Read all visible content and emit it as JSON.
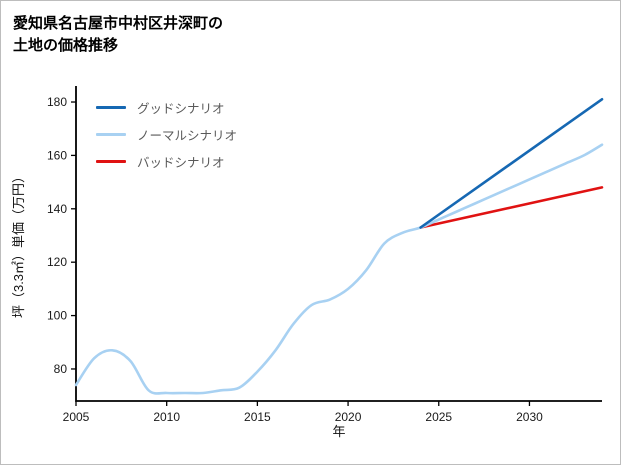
{
  "page": {
    "title_line1": "愛知県名古屋市中村区井深町の",
    "title_line2": "土地の価格推移"
  },
  "chart_data": {
    "type": "line",
    "title": "愛知県名古屋市中村区井深町の土地の価格推移",
    "xlabel": "年",
    "ylabel": "坪（3.3㎡）単価（万円）",
    "xlim": [
      2005,
      2034
    ],
    "ylim": [
      68,
      186
    ],
    "xticks": [
      2005,
      2010,
      2015,
      2020,
      2025,
      2030
    ],
    "yticks": [
      80,
      100,
      120,
      140,
      160,
      180
    ],
    "grid": false,
    "legend_position": "upper-left-inside",
    "axis_color": "#000000",
    "series": [
      {
        "name": "グッドシナリオ",
        "color": "#1668b3",
        "x": [
          2024,
          2034
        ],
        "y": [
          133,
          181
        ]
      },
      {
        "name": "ノーマルシナリオ",
        "color": "#a8d1f2",
        "x": [
          2005,
          2006,
          2007,
          2008,
          2009,
          2010,
          2011,
          2012,
          2013,
          2014,
          2015,
          2016,
          2017,
          2018,
          2019,
          2020,
          2021,
          2022,
          2023,
          2024,
          2025,
          2026,
          2027,
          2028,
          2029,
          2030,
          2031,
          2032,
          2033,
          2034
        ],
        "y": [
          74,
          84,
          87,
          83,
          72,
          71,
          71,
          71,
          72,
          73,
          79,
          87,
          97,
          104,
          106,
          110,
          117,
          127,
          131,
          133,
          136,
          139,
          142,
          145,
          148,
          151,
          154,
          157,
          160,
          164
        ]
      },
      {
        "name": "バッドシナリオ",
        "color": "#e01212",
        "x": [
          2024,
          2034
        ],
        "y": [
          133,
          148
        ]
      }
    ]
  }
}
